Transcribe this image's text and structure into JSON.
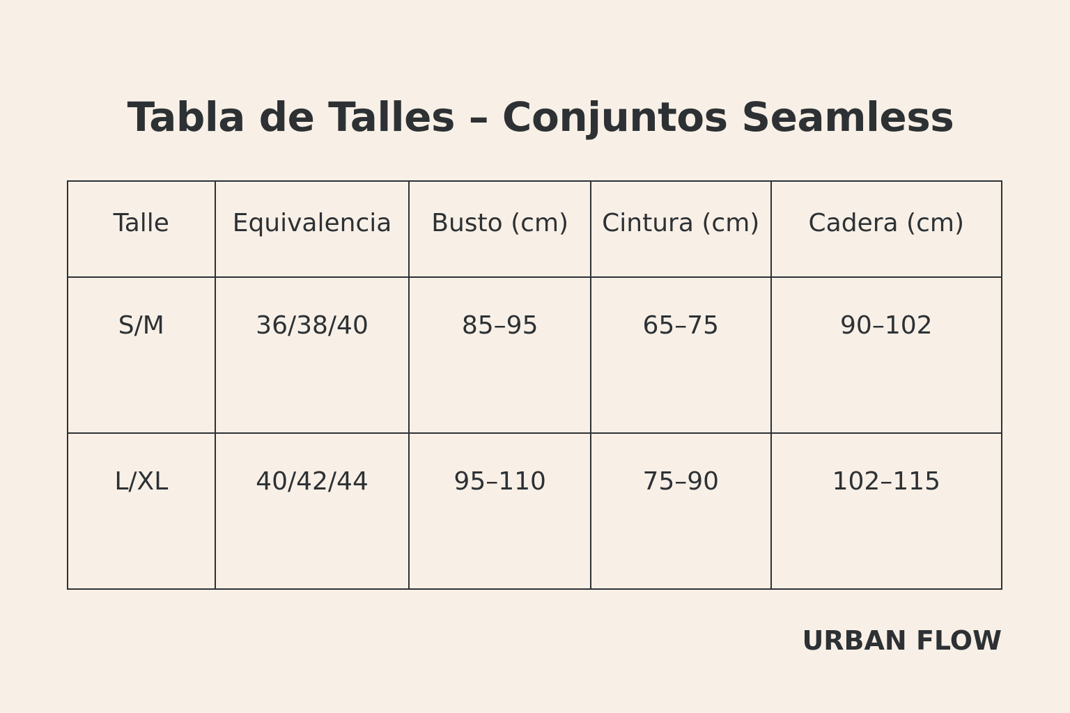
{
  "header": {
    "title": "Tabla de Talles – Conjuntos Seamless"
  },
  "table": {
    "columns": [
      "Talle",
      "Equivalencia",
      "Busto (cm)",
      "Cintura (cm)",
      "Cadera (cm)"
    ],
    "rows": [
      [
        "S/M",
        "36/38/40",
        "85–95",
        "65–75",
        "90–102"
      ],
      [
        "L/XL",
        "40/42/44",
        "95–110",
        "75–90",
        "102–115"
      ]
    ]
  },
  "footer": {
    "brand": "URBAN FLOW"
  }
}
